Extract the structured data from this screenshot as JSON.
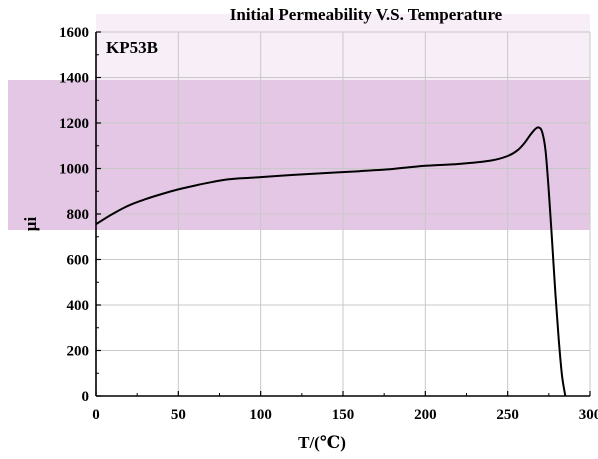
{
  "chart_data": {
    "type": "line",
    "title": "Initial Permeability V.S. Temperature",
    "annotation": "KP53B",
    "xlabel": "T/(℃)",
    "ylabel": "μi",
    "xlim": [
      0,
      300
    ],
    "ylim": [
      0,
      1600
    ],
    "xticks": [
      0,
      50,
      100,
      150,
      200,
      250,
      300
    ],
    "yticks": [
      0,
      200,
      400,
      600,
      800,
      1000,
      1200,
      1400,
      1600
    ],
    "grid": true,
    "series": [
      {
        "color": "#000000",
        "x": [
          0,
          10,
          20,
          30,
          40,
          50,
          60,
          70,
          80,
          90,
          100,
          120,
          140,
          160,
          180,
          200,
          220,
          240,
          250,
          256,
          260,
          264,
          267,
          269,
          271,
          273,
          275,
          277,
          279,
          281,
          283,
          285
        ],
        "y": [
          755,
          800,
          838,
          865,
          888,
          908,
          925,
          940,
          952,
          958,
          962,
          972,
          980,
          988,
          998,
          1012,
          1020,
          1035,
          1055,
          1080,
          1110,
          1150,
          1175,
          1180,
          1160,
          1080,
          900,
          680,
          450,
          250,
          90,
          0
        ]
      }
    ]
  },
  "colors": {
    "overlay_band": "#e3c7e4",
    "overlay_band_light": "#f7eef7",
    "grid": "#c8c8c8",
    "axis": "#000000"
  }
}
